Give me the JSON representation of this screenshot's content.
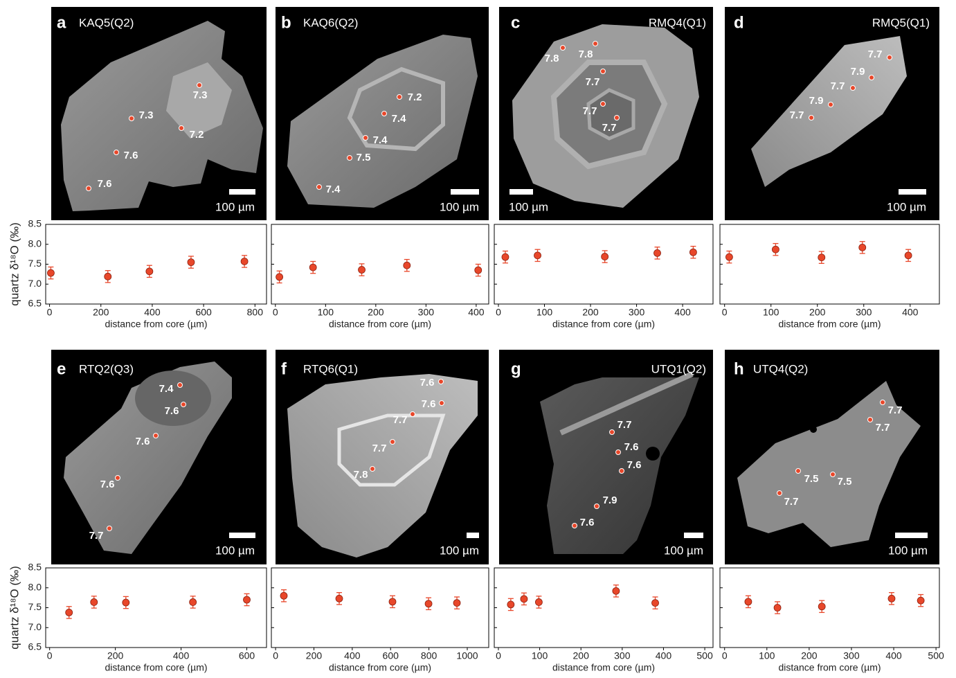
{
  "chart_data": [
    {
      "type": "scatter",
      "panel": "a",
      "sample": "KAQ5(Q2)",
      "scale_label": "100 µm",
      "spots": [
        7.3,
        7.3,
        7.2,
        7.6,
        7.6
      ],
      "ylabel": "quartz δ¹⁸O (‰)",
      "xlabel": "distance from core (µm)",
      "color": "#e8472a",
      "x": [
        5,
        227,
        389,
        551,
        759
      ],
      "values": [
        7.28,
        7.19,
        7.32,
        7.55,
        7.57
      ],
      "errors": [
        0.15,
        0.15,
        0.15,
        0.15,
        0.15
      ],
      "xlim": [
        -15,
        845
      ],
      "xticks": [
        0,
        200,
        400,
        600,
        800
      ],
      "ylim": [
        6.5,
        8.5
      ],
      "yticks": [
        6.5,
        {
          "value": 7,
          "label": "7.0"
        },
        7.5,
        {
          "value": 8,
          "label": "8.0"
        },
        8.5
      ]
    },
    {
      "type": "scatter",
      "panel": "b",
      "sample": "KAQ6(Q2)",
      "scale_label": "100 µm",
      "spots": [
        7.2,
        7.4,
        7.4,
        7.5,
        7.4
      ],
      "xlabel": "distance from core (µm)",
      "color": "#e8472a",
      "x": [
        8,
        75,
        172,
        262,
        404
      ],
      "values": [
        7.18,
        7.42,
        7.36,
        7.47,
        7.35
      ],
      "errors": [
        0.15,
        0.15,
        0.15,
        0.15,
        0.15
      ],
      "xlim": [
        -8,
        425
      ],
      "xticks": [
        0,
        100,
        200,
        300,
        400
      ],
      "ylim": [
        6.5,
        8.5
      ],
      "yticks": [
        6.5,
        7,
        7.5,
        8,
        8.5
      ]
    },
    {
      "type": "scatter",
      "panel": "c",
      "sample": "RMQ4(Q1)",
      "scale_label": "100 µm",
      "spots": [
        7.8,
        7.8,
        7.7,
        7.7,
        7.7
      ],
      "xlabel": "distance from core (µm)",
      "color": "#e8472a",
      "x": [
        15,
        85,
        231,
        345,
        423
      ],
      "values": [
        7.68,
        7.72,
        7.69,
        7.78,
        7.8
      ],
      "errors": [
        0.15,
        0.15,
        0.15,
        0.15,
        0.15
      ],
      "xlim": [
        -9,
        466
      ],
      "xticks": [
        0,
        100,
        200,
        300,
        400
      ],
      "ylim": [
        6.5,
        8.5
      ],
      "yticks": [
        6.5,
        7,
        7.5,
        8,
        8.5
      ]
    },
    {
      "type": "scatter",
      "panel": "d",
      "sample": "RMQ5(Q1)",
      "scale_label": "100 µm",
      "spots": [
        7.7,
        7.9,
        7.7,
        7.9,
        7.7
      ],
      "xlabel": "distance from core (µm)",
      "color": "#e8472a",
      "x": [
        10,
        110,
        209,
        297,
        396
      ],
      "values": [
        7.68,
        7.87,
        7.67,
        7.92,
        7.72
      ],
      "errors": [
        0.15,
        0.15,
        0.15,
        0.15,
        0.15
      ],
      "xlim": [
        -10,
        463
      ],
      "xticks": [
        0,
        100,
        200,
        300,
        400
      ],
      "ylim": [
        6.5,
        8.5
      ],
      "yticks": [
        6.5,
        7,
        7.5,
        8,
        8.5
      ]
    },
    {
      "type": "scatter",
      "panel": "e",
      "sample": "RTQ2(Q3)",
      "scale_label": "100 µm",
      "spots": [
        7.4,
        7.6,
        7.6,
        7.6,
        7.7
      ],
      "ylabel": "quartz δ¹⁸O (‰)",
      "xlabel": "distance from core (µm)",
      "color": "#e8472a",
      "x": [
        59,
        135,
        232,
        436,
        600
      ],
      "values": [
        7.38,
        7.64,
        7.63,
        7.64,
        7.7
      ],
      "errors": [
        0.15,
        0.15,
        0.15,
        0.15,
        0.15
      ],
      "xlim": [
        -12,
        660
      ],
      "xticks": [
        0,
        200,
        400,
        600
      ],
      "ylim": [
        6.5,
        8.5
      ],
      "yticks": [
        6.5,
        {
          "value": 7,
          "label": "7.0"
        },
        7.5,
        {
          "value": 8,
          "label": "8.0"
        },
        8.5
      ]
    },
    {
      "type": "scatter",
      "panel": "f",
      "sample": "RTQ6(Q1)",
      "scale_label": "100 µm",
      "spots": [
        7.6,
        7.6,
        7.7,
        7.7,
        7.8
      ],
      "xlabel": "distance from core (µm)",
      "color": "#e8472a",
      "x": [
        43,
        332,
        610,
        798,
        946
      ],
      "values": [
        7.8,
        7.73,
        7.65,
        7.6,
        7.62
      ],
      "errors": [
        0.15,
        0.15,
        0.15,
        0.15,
        0.15
      ],
      "xlim": [
        -22,
        1112
      ],
      "xticks": [
        0,
        200,
        400,
        600,
        800,
        1000
      ],
      "ylim": [
        6.5,
        8.5
      ],
      "yticks": [
        6.5,
        7,
        7.5,
        8,
        8.5
      ]
    },
    {
      "type": "scatter",
      "panel": "g",
      "sample": "UTQ1(Q2)",
      "scale_label": "100 µm",
      "spots": [
        7.7,
        7.6,
        7.6,
        7.9,
        7.6
      ],
      "xlabel": "distance from core (µm)",
      "color": "#e8472a",
      "x": [
        30,
        62,
        98,
        285,
        380
      ],
      "values": [
        7.58,
        7.72,
        7.64,
        7.92,
        7.62
      ],
      "errors": [
        0.15,
        0.15,
        0.15,
        0.15,
        0.15
      ],
      "xlim": [
        -10,
        520
      ],
      "xticks": [
        0,
        100,
        200,
        300,
        400,
        500
      ],
      "ylim": [
        6.5,
        8.5
      ],
      "yticks": [
        6.5,
        7,
        7.5,
        8,
        8.5
      ]
    },
    {
      "type": "scatter",
      "panel": "h",
      "sample": "UTQ4(Q2)",
      "scale_label": "100 µm",
      "spots": [
        7.7,
        7.7,
        7.5,
        7.5,
        7.7
      ],
      "xlabel": "distance from core (µm)",
      "color": "#e8472a",
      "x": [
        56,
        125,
        230,
        395,
        464
      ],
      "values": [
        7.65,
        7.5,
        7.53,
        7.73,
        7.68
      ],
      "errors": [
        0.15,
        0.15,
        0.15,
        0.15,
        0.15
      ],
      "xlim": [
        -11,
        508
      ],
      "xticks": [
        0,
        100,
        200,
        300,
        400,
        500
      ],
      "ylim": [
        6.5,
        8.5
      ],
      "yticks": [
        6.5,
        7,
        7.5,
        8,
        8.5
      ]
    }
  ]
}
